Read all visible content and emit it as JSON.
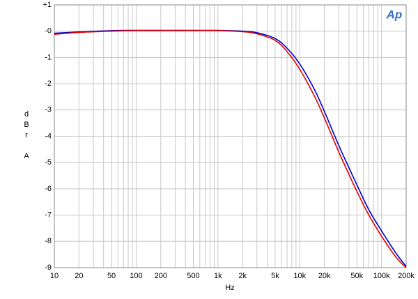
{
  "chart_data": {
    "type": "line",
    "logo": "Ap",
    "y_label": "dBr A",
    "x_label": "Hz",
    "x_log": true,
    "grid": true,
    "xlim": [
      10,
      200000
    ],
    "ylim": [
      -9,
      1
    ],
    "xticks": [
      10,
      20,
      50,
      100,
      200,
      500,
      {
        "value": 1000,
        "label": "1k"
      },
      {
        "value": 2000,
        "label": "2k"
      },
      {
        "value": 5000,
        "label": "5k"
      },
      {
        "value": 10000,
        "label": "10k"
      },
      {
        "value": 20000,
        "label": "20k"
      },
      {
        "value": 50000,
        "label": "50k"
      },
      {
        "value": 100000,
        "label": "100k"
      },
      {
        "value": 200000,
        "label": "200k"
      }
    ],
    "x_minor_ticks": [
      30,
      40,
      60,
      70,
      80,
      90,
      300,
      400,
      600,
      700,
      800,
      900,
      3000,
      4000,
      6000,
      7000,
      8000,
      9000,
      30000,
      40000,
      60000,
      70000,
      80000,
      90000
    ],
    "yticks": [
      {
        "value": 1,
        "label": "+1"
      },
      {
        "value": 0,
        "label": "-0"
      },
      -1,
      -2,
      -3,
      -4,
      -5,
      -6,
      -7,
      -8,
      -9
    ],
    "x": [
      10,
      20,
      50,
      100,
      200,
      500,
      1000,
      2000,
      3000,
      5000,
      7000,
      10000,
      15000,
      20000,
      30000,
      40000,
      50000,
      70000,
      100000,
      150000,
      200000
    ],
    "series": [
      {
        "color": "#0000cc",
        "values": [
          -0.08,
          -0.03,
          0.02,
          0.03,
          0.03,
          0.03,
          0.03,
          0,
          -0.06,
          -0.28,
          -0.65,
          -1.25,
          -2.2,
          -3.05,
          -4.35,
          -5.2,
          -5.85,
          -6.8,
          -7.6,
          -8.45,
          -8.95
        ]
      },
      {
        "color": "#dd0000",
        "values": [
          -0.12,
          -0.05,
          0,
          0.02,
          0.02,
          0.02,
          0.02,
          -0.02,
          -0.1,
          -0.35,
          -0.78,
          -1.45,
          -2.45,
          -3.3,
          -4.6,
          -5.45,
          -6.1,
          -7.0,
          -7.8,
          -8.6,
          -9.0
        ]
      }
    ]
  }
}
